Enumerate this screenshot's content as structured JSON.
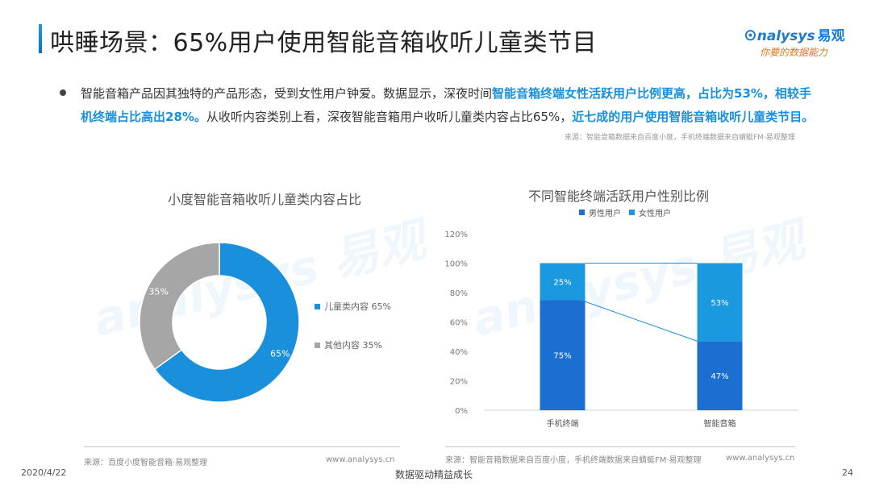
{
  "header": {
    "title": "哄睡场景：65%用户使用智能音箱收听儿童类节目",
    "logo_text": "nalysys",
    "logo_cn": "易观",
    "logo_slogan": "你要的数据能力",
    "accent": "#1a8fdb"
  },
  "body": {
    "p1": "智能音箱产品因其独特的产品形态，受到女性用户钟爱。数据显示，深夜时间",
    "p1_hl": "智能音箱终端女性活跃用户比例更高，占比为53%，相较手机终端占比高出28%。",
    "p2": "从收听内容类别上看，深夜智能音箱用户收听儿童类内容占比65%，",
    "p2_hl": "近七成的用户使用智能音箱收听儿童类节目。",
    "source": "来源：智能音箱数据来自百度小度，手机终端数据来自蜻蜓FM·易观整理"
  },
  "chart_data": [
    {
      "type": "pie",
      "title": "小度智能音箱收听儿童类内容占比",
      "categories": [
        "儿童类内容",
        "其他内容"
      ],
      "values": [
        65,
        35
      ],
      "data_labels": [
        "65%",
        "35%"
      ],
      "legend_labels": [
        "儿童类内容 65%",
        "其他内容 35%"
      ],
      "colors": [
        "#1a8fdb",
        "#a6a6a6"
      ],
      "legend": "right"
    },
    {
      "type": "bar",
      "stacked": true,
      "title": "不同智能终端活跃用户性别比例",
      "categories": [
        "手机终端",
        "智能音箱"
      ],
      "series": [
        {
          "name": "男性用户",
          "values": [
            75,
            47
          ],
          "labels": [
            "75%",
            "47%"
          ],
          "color": "#1a6fd0"
        },
        {
          "name": "女性用户",
          "values": [
            25,
            53
          ],
          "labels": [
            "25%",
            "53%"
          ],
          "color": "#1a98e0"
        }
      ],
      "yticks": [
        "0%",
        "20%",
        "40%",
        "60%",
        "80%",
        "100%",
        "120%"
      ],
      "ylim": [
        0,
        120
      ],
      "legend": "top"
    }
  ],
  "footer": {
    "source_left": "来源：百度小度智能音箱·易观整理",
    "source_right": "来源：智能音箱数据来自百度小度，手机终端数据来自蜻蜓FM·易观整理",
    "site": "www.analysys.cn",
    "date": "2020/4/22",
    "slogan": "数据驱动精益成长",
    "page": "24"
  }
}
